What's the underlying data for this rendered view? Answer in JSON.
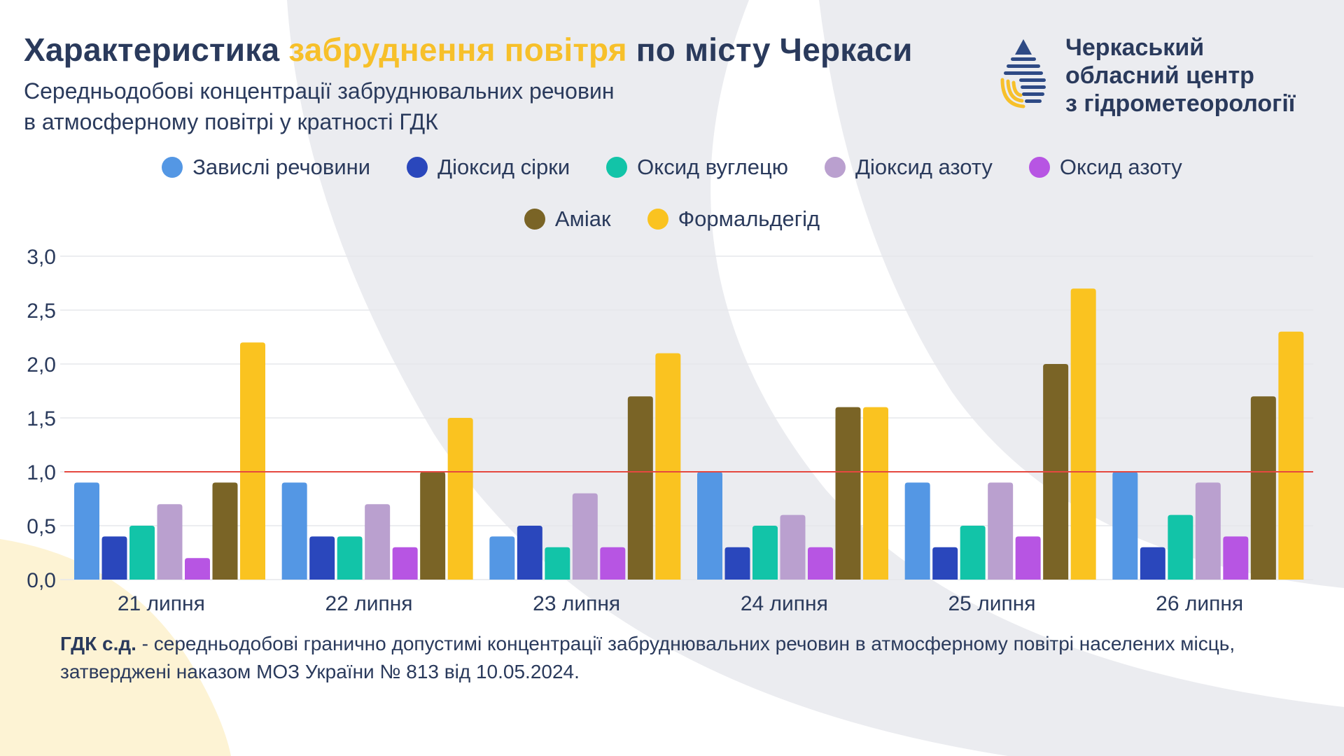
{
  "header": {
    "title_part1": "Характеристика",
    "title_highlight": "забруднення повітря",
    "title_part2": "по місту Черкаси",
    "subtitle_line1": "Середньодобові концентрації забруднювальних речовин",
    "subtitle_line2": "в атмосферному повітрі у кратності ГДК"
  },
  "org": {
    "line1": "Черкаський",
    "line2": "обласний центр",
    "line3": "з гідрометеорології",
    "logo_icon": "water-drop-logo-icon"
  },
  "colors": {
    "title_text": "#2a3a5c",
    "highlight": "#f7c02a",
    "threshold_line": "#e5483f",
    "background_shape": "#ebecf0"
  },
  "chart_data": {
    "type": "bar",
    "title": "",
    "xlabel": "",
    "ylabel": "",
    "ylim": [
      0,
      3
    ],
    "yticks": [
      "0,0",
      "0,5",
      "1,0",
      "1,5",
      "2,0",
      "2,5",
      "3,0"
    ],
    "grid": true,
    "legend_position": "top",
    "threshold": 1.0,
    "categories": [
      "21 липня",
      "22 липня",
      "23 липня",
      "24 липня",
      "25 липня",
      "26 липня"
    ],
    "series": [
      {
        "name": "Завислі речовини",
        "color": "#5497e4",
        "values": [
          0.9,
          0.9,
          0.4,
          1.0,
          0.9,
          1.0
        ]
      },
      {
        "name": "Діоксид сірки",
        "color": "#2a47bc",
        "values": [
          0.4,
          0.4,
          0.5,
          0.3,
          0.3,
          0.3
        ]
      },
      {
        "name": "Оксид вуглецю",
        "color": "#12c4a8",
        "values": [
          0.5,
          0.4,
          0.3,
          0.5,
          0.5,
          0.6
        ]
      },
      {
        "name": "Діоксид азоту",
        "color": "#baa0cf",
        "values": [
          0.7,
          0.7,
          0.8,
          0.6,
          0.9,
          0.9
        ]
      },
      {
        "name": "Оксид азоту",
        "color": "#b755e3",
        "values": [
          0.2,
          0.3,
          0.3,
          0.3,
          0.4,
          0.4
        ]
      },
      {
        "name": "Аміак",
        "color": "#7a6426",
        "values": [
          0.9,
          1.0,
          1.7,
          1.6,
          2.0,
          1.7
        ]
      },
      {
        "name": "Формальдегід",
        "color": "#fac320",
        "values": [
          2.2,
          1.5,
          2.1,
          1.6,
          2.7,
          2.3
        ]
      }
    ]
  },
  "footnote": {
    "term": "ГДК с.д.",
    "text": " - середньодобові гранично допустимі концентрації забруднювальних речовин в атмосферному повітрі населених місць, затверджені наказом МОЗ України № 813 від 10.05.2024."
  }
}
